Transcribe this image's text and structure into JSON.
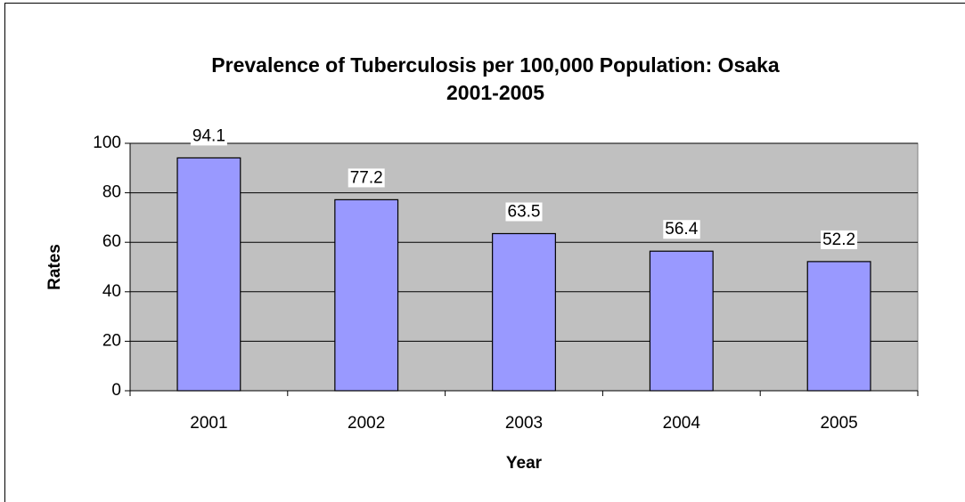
{
  "chart_data": {
    "type": "bar",
    "title": [
      "Prevalence of Tuberculosis per 100,000 Population:  Osaka",
      "2001-2005"
    ],
    "x_label": "Year",
    "y_label": "Rates",
    "categories": [
      "2001",
      "2002",
      "2003",
      "2004",
      "2005"
    ],
    "values": [
      94.1,
      77.2,
      63.5,
      56.4,
      52.2
    ],
    "color": "#9999ff",
    "plot_background": "#c0c0c0",
    "ylim": [
      0,
      100
    ],
    "yticks": [
      0,
      20,
      40,
      60,
      80,
      100
    ],
    "grid": true
  }
}
